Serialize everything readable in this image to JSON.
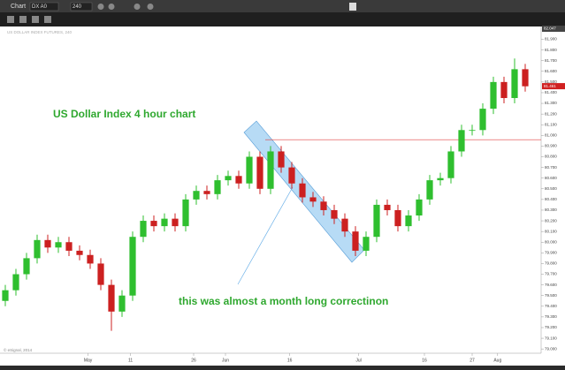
{
  "window": {
    "title": "Chart",
    "symbol": "DX A0",
    "interval": "240"
  },
  "chart_data": {
    "type": "candlestick",
    "title": "US DOLLAR INDEX FUTURES, 240",
    "annotations": [
      "US Dollar Index 4 hour chart",
      "this was almost a month long correctinon"
    ],
    "copyright": "© eSignal, 2014",
    "up_color": "#2fbf2f",
    "down_color": "#cc2020",
    "open": [
      79.45,
      79.55,
      79.7,
      79.85,
      80.02,
      79.95,
      80.0,
      79.92,
      79.88,
      79.8,
      79.6,
      79.35,
      79.5,
      80.05,
      80.2,
      80.15,
      80.22,
      80.15,
      80.4,
      80.48,
      80.45,
      80.58,
      80.62,
      80.55,
      80.8,
      80.5,
      80.85,
      80.7,
      80.55,
      80.42,
      80.38,
      80.3,
      80.22,
      80.1,
      79.92,
      80.05,
      80.35,
      80.3,
      80.15,
      80.25,
      80.4,
      80.58,
      80.6,
      80.85,
      81.05,
      81.05,
      81.25,
      81.5,
      81.35,
      81.62
    ],
    "high": [
      79.6,
      79.75,
      79.9,
      80.07,
      80.07,
      80.05,
      80.05,
      79.97,
      79.93,
      79.85,
      79.65,
      79.55,
      80.1,
      80.25,
      80.25,
      80.27,
      80.27,
      80.45,
      80.53,
      80.53,
      80.63,
      80.67,
      80.67,
      80.85,
      80.85,
      80.9,
      80.9,
      80.75,
      80.6,
      80.47,
      80.43,
      80.35,
      80.27,
      80.15,
      80.1,
      80.4,
      80.4,
      80.35,
      80.3,
      80.45,
      80.63,
      80.65,
      80.9,
      81.1,
      81.1,
      81.3,
      81.55,
      81.55,
      81.72,
      81.67
    ],
    "low": [
      79.4,
      79.5,
      79.65,
      79.8,
      79.9,
      79.9,
      79.87,
      79.83,
      79.75,
      79.55,
      79.17,
      79.3,
      79.45,
      80.0,
      80.1,
      80.1,
      80.1,
      80.1,
      80.35,
      80.4,
      80.4,
      80.53,
      80.5,
      80.5,
      80.45,
      80.45,
      80.65,
      80.5,
      80.37,
      80.33,
      80.25,
      80.17,
      80.05,
      79.87,
      79.87,
      80.0,
      80.25,
      80.1,
      80.1,
      80.2,
      80.35,
      80.53,
      80.55,
      80.8,
      81.0,
      81.0,
      81.2,
      81.3,
      81.3,
      81.41
    ],
    "close": [
      79.55,
      79.7,
      79.85,
      80.02,
      79.95,
      80.0,
      79.92,
      79.88,
      79.8,
      79.6,
      79.35,
      79.5,
      80.05,
      80.2,
      80.15,
      80.22,
      80.15,
      80.4,
      80.48,
      80.45,
      80.58,
      80.62,
      80.55,
      80.8,
      80.5,
      80.85,
      80.7,
      80.55,
      80.42,
      80.38,
      80.3,
      80.22,
      80.1,
      79.92,
      80.05,
      80.35,
      80.3,
      80.15,
      80.25,
      80.4,
      80.58,
      80.6,
      80.85,
      81.05,
      81.05,
      81.25,
      81.5,
      81.35,
      81.62,
      81.46
    ],
    "hline": 80.96,
    "hline_color": "#e04040",
    "last_price": {
      "value": 81.461,
      "label": "81.461"
    },
    "top_label": "82.047",
    "xlim": [
      -0.5,
      50.5
    ],
    "xticks": [
      {
        "value": 7.8,
        "label": "May"
      },
      {
        "value": 11.8,
        "label": "11"
      },
      {
        "value": 17.75,
        "label": "26"
      },
      {
        "value": 20.75,
        "label": "Jun"
      },
      {
        "value": 26.8,
        "label": "16"
      },
      {
        "value": 33.3,
        "label": "Jul"
      },
      {
        "value": 39.5,
        "label": "16"
      },
      {
        "value": 44,
        "label": "27"
      },
      {
        "value": 46.4,
        "label": "Aug"
      }
    ],
    "ylim": [
      78.96,
      82.02
    ],
    "yticks": [
      {
        "value": 79.0,
        "label": "79.000"
      },
      {
        "value": 79.1,
        "label": "79.100"
      },
      {
        "value": 79.2,
        "label": "79.200"
      },
      {
        "value": 79.3,
        "label": "79.300"
      },
      {
        "value": 79.4,
        "label": "79.400"
      },
      {
        "value": 79.5,
        "label": "79.500"
      },
      {
        "value": 79.6,
        "label": "79.600"
      },
      {
        "value": 79.7,
        "label": "79.700"
      },
      {
        "value": 79.8,
        "label": "79.800"
      },
      {
        "value": 79.9,
        "label": "79.900"
      },
      {
        "value": 80.0,
        "label": "80.000"
      },
      {
        "value": 80.1,
        "label": "80.100"
      },
      {
        "value": 80.2,
        "label": "80.200"
      },
      {
        "value": 80.3,
        "label": "80.300"
      },
      {
        "value": 80.4,
        "label": "80.400"
      },
      {
        "value": 80.5,
        "label": "80.500"
      },
      {
        "value": 80.6,
        "label": "80.600"
      },
      {
        "value": 80.7,
        "label": "80.700"
      },
      {
        "value": 80.8,
        "label": "80.800"
      },
      {
        "value": 80.9,
        "label": "80.900"
      },
      {
        "value": 81.0,
        "label": "81.000"
      },
      {
        "value": 81.1,
        "label": "81.100"
      },
      {
        "value": 81.2,
        "label": "81.200"
      },
      {
        "value": 81.3,
        "label": "81.300"
      },
      {
        "value": 81.4,
        "label": "81.400"
      },
      {
        "value": 81.5,
        "label": "81.500"
      },
      {
        "value": 81.6,
        "label": "81.600"
      },
      {
        "value": 81.7,
        "label": "81.700"
      },
      {
        "value": 81.8,
        "label": "81.800"
      },
      {
        "value": 81.9,
        "label": "81.900"
      }
    ]
  }
}
